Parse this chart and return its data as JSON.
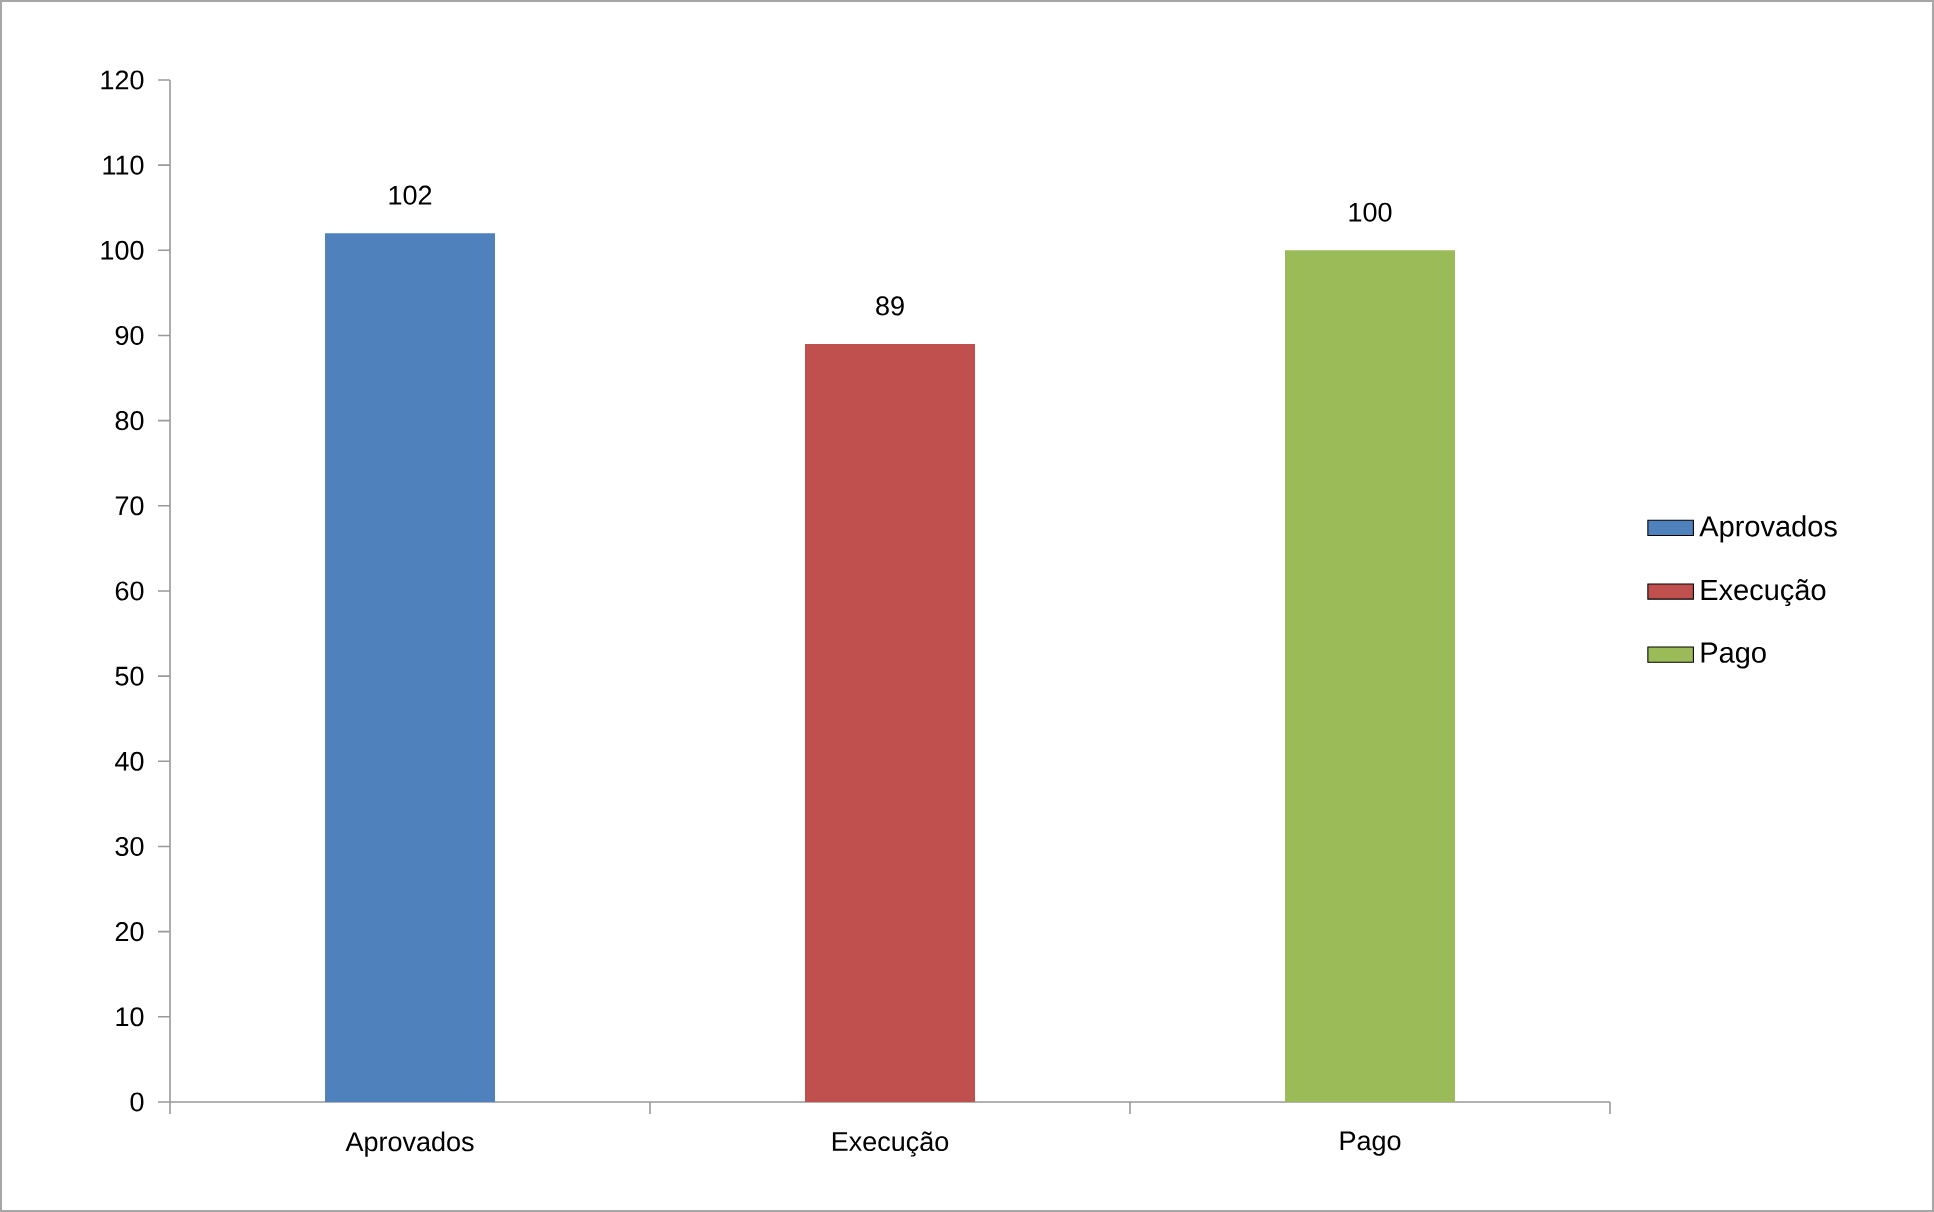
{
  "chart_data": {
    "type": "bar",
    "categories": [
      "Aprovados",
      "Execução",
      "Pago"
    ],
    "series": [
      {
        "name": "Aprovados",
        "color": "#4f81bd",
        "values": [
          102,
          null,
          null
        ]
      },
      {
        "name": "Execução",
        "color": "#c0504d",
        "values": [
          null,
          89,
          null
        ]
      },
      {
        "name": "Pago",
        "color": "#9bbb59",
        "values": [
          null,
          null,
          100
        ]
      }
    ],
    "ylim": [
      0,
      120
    ],
    "yticks": [
      0,
      10,
      20,
      30,
      40,
      50,
      60,
      70,
      80,
      90,
      100,
      110,
      120
    ],
    "data_labels": true,
    "legend": "right",
    "grid": false
  }
}
